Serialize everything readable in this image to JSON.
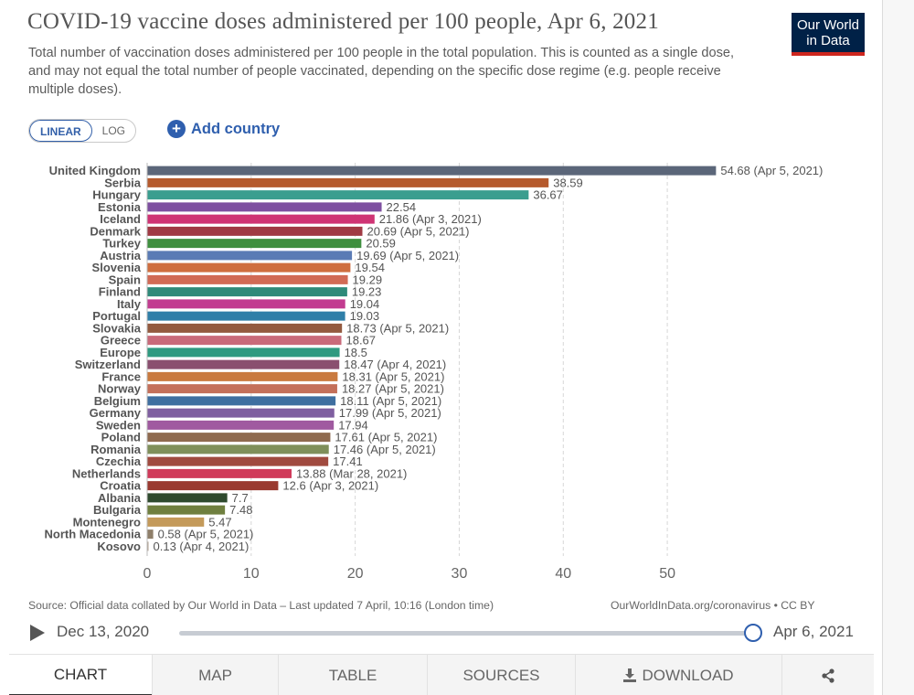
{
  "header": {
    "title": "COVID-19 vaccine doses administered per 100 people, Apr 6, 2021",
    "subtitle": "Total number of vaccination doses administered per 100 people in the total population. This is counted as a single dose, and may not equal the total number of people vaccinated, depending on the specific dose regime (e.g. people receive multiple doses).",
    "logo_line1": "Our World",
    "logo_line2": "in Data"
  },
  "controls": {
    "linear_label": "LINEAR",
    "log_label": "LOG",
    "selected_scale": "linear",
    "add_country_label": "Add country",
    "plus_icon": "plus-circle-icon"
  },
  "chart_data": {
    "type": "bar",
    "orientation": "horizontal",
    "xlim": [
      0,
      55
    ],
    "xticks": [
      0,
      10,
      20,
      30,
      40,
      50
    ],
    "grid": true,
    "categories": [
      "United Kingdom",
      "Serbia",
      "Hungary",
      "Estonia",
      "Iceland",
      "Denmark",
      "Turkey",
      "Austria",
      "Slovenia",
      "Spain",
      "Finland",
      "Italy",
      "Portugal",
      "Slovakia",
      "Greece",
      "Europe",
      "Switzerland",
      "France",
      "Norway",
      "Belgium",
      "Germany",
      "Sweden",
      "Poland",
      "Romania",
      "Czechia",
      "Netherlands",
      "Croatia",
      "Albania",
      "Bulgaria",
      "Montenegro",
      "North Macedonia",
      "Kosovo"
    ],
    "values": [
      54.68,
      38.59,
      36.67,
      22.54,
      21.86,
      20.69,
      20.59,
      19.69,
      19.54,
      19.29,
      19.23,
      19.04,
      19.03,
      18.73,
      18.67,
      18.5,
      18.47,
      18.31,
      18.27,
      18.11,
      17.99,
      17.94,
      17.61,
      17.46,
      17.41,
      13.88,
      12.6,
      7.7,
      7.48,
      5.47,
      0.58,
      0.13
    ],
    "value_labels": [
      "54.68 (Apr 5, 2021)",
      "38.59",
      "36.67",
      "22.54",
      "21.86 (Apr 3, 2021)",
      "20.69 (Apr 5, 2021)",
      "20.59",
      "19.69 (Apr 5, 2021)",
      "19.54",
      "19.29",
      "19.23",
      "19.04",
      "19.03",
      "18.73 (Apr 5, 2021)",
      "18.67",
      "18.5",
      "18.47 (Apr 4, 2021)",
      "18.31 (Apr 5, 2021)",
      "18.27 (Apr 5, 2021)",
      "18.11 (Apr 5, 2021)",
      "17.99 (Apr 5, 2021)",
      "17.94",
      "17.61 (Apr 5, 2021)",
      "17.46 (Apr 5, 2021)",
      "17.41",
      "13.88 (Mar 28, 2021)",
      "12.6 (Apr 3, 2021)",
      "7.7",
      "7.48",
      "5.47",
      "0.58 (Apr 5, 2021)",
      "0.13 (Apr 4, 2021)"
    ],
    "colors": [
      "#5b6679",
      "#b55a2d",
      "#3a9e8f",
      "#7e4fa0",
      "#cf3474",
      "#a03a44",
      "#3f8f3f",
      "#5a7bb5",
      "#cf6e3f",
      "#d16a55",
      "#2f8a7a",
      "#c23c90",
      "#2f7fa8",
      "#935a3f",
      "#c96a7a",
      "#2f9a80",
      "#8a4f6f",
      "#c97a3f",
      "#c4705a",
      "#3f6fa0",
      "#7f5fa0",
      "#a05aa0",
      "#8f6a4f",
      "#7f8f5a",
      "#a04a3f",
      "#d03a5a",
      "#9a3a30",
      "#2e4a2e",
      "#6f7f3f",
      "#c49a5a",
      "#8f7f6a",
      "#b0a090"
    ]
  },
  "footer": {
    "source": "Source: Official data collated by Our World in Data – Last updated 7 April, 10:16 (London time)",
    "license": "OurWorldInData.org/coronavirus • CC BY"
  },
  "timeline": {
    "start_date": "Dec 13, 2020",
    "end_date": "Apr 6, 2021",
    "position": 1.0,
    "play_icon": "play-icon"
  },
  "tabs": [
    {
      "label": "CHART",
      "active": true
    },
    {
      "label": "MAP",
      "active": false
    },
    {
      "label": "TABLE",
      "active": false
    },
    {
      "label": "SOURCES",
      "active": false
    },
    {
      "label": "DOWNLOAD",
      "active": false,
      "icon": "download-icon"
    },
    {
      "label": "",
      "active": false,
      "icon": "share-icon"
    }
  ]
}
